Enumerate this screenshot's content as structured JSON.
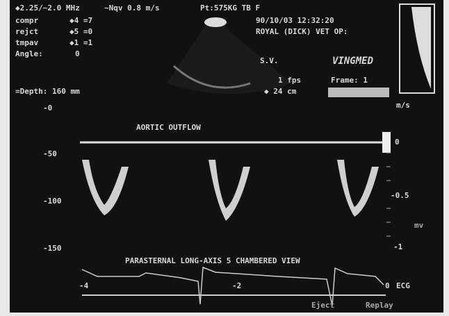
{
  "header": {
    "frequency": "◆2.25/~2.0 MHz",
    "nyquist": "~Nqv 0.8 m/s",
    "patient": "Pt:575KG TB F",
    "datetime": "90/10/03  12:32:20",
    "site": "ROYAL (DICK) VET OP:"
  },
  "settings": [
    {
      "label": "compr",
      "value": "◆4 =7"
    },
    {
      "label": "rejct",
      "value": "◆5 =0"
    },
    {
      "label": "tmpav",
      "value": "◆1 =1"
    },
    {
      "label": "Angle:",
      "value": "0"
    }
  ],
  "sample_volume": "S.V.",
  "brand": "VINGMED",
  "frame_rate": "1 fps",
  "width": "◆ 24 cm",
  "frame": "Frame:  1",
  "depth": "=Depth: 160 mm",
  "velocity_unit": "m/s",
  "depth_scale": [
    "-0",
    "-50",
    "-100",
    "-150"
  ],
  "velocity_scale": [
    "0",
    "-0.5",
    "-1"
  ],
  "ecg_unit": "mv",
  "trace_label": "AORTIC OUTFLOW",
  "view_label": "PARASTERNAL LONG-AXIS 5 CHAMBERED VIEW",
  "ecg_scale": [
    "-4",
    "-2",
    "0"
  ],
  "ecg_label": "ECG",
  "footer": {
    "left": "Eject",
    "right": "Replay"
  }
}
